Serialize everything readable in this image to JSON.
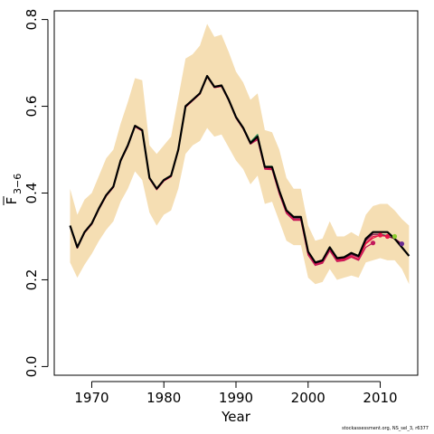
{
  "chart_data": {
    "type": "line",
    "xlabel": "Year",
    "ylabel_main": "F",
    "ylabel_sub": "3−6",
    "xlim": [
      1964.8,
      2015.2
    ],
    "ylim": [
      -0.02,
      0.82
    ],
    "xticks": [
      1970,
      1980,
      1990,
      2000,
      2010
    ],
    "yticks": [
      0.0,
      0.2,
      0.4,
      0.6,
      0.8
    ],
    "ytick_labels": [
      "0.0",
      "0.2",
      "0.4",
      "0.6",
      "0.8"
    ],
    "band_color": "#f5deb3",
    "ci_band": {
      "x": [
        1967,
        1968,
        1969,
        1970,
        1971,
        1972,
        1973,
        1974,
        1975,
        1976,
        1977,
        1978,
        1979,
        1980,
        1981,
        1982,
        1983,
        1984,
        1985,
        1986,
        1987,
        1988,
        1989,
        1990,
        1991,
        1992,
        1993,
        1994,
        1995,
        1996,
        1997,
        1998,
        1999,
        2000,
        2001,
        2002,
        2003,
        2004,
        2005,
        2006,
        2007,
        2008,
        2009,
        2010,
        2011,
        2012,
        2013,
        2014
      ],
      "lower": [
        0.24,
        0.205,
        0.235,
        0.26,
        0.29,
        0.315,
        0.335,
        0.38,
        0.41,
        0.45,
        0.43,
        0.355,
        0.325,
        0.35,
        0.36,
        0.41,
        0.49,
        0.51,
        0.52,
        0.55,
        0.53,
        0.535,
        0.505,
        0.475,
        0.455,
        0.42,
        0.44,
        0.375,
        0.38,
        0.335,
        0.29,
        0.28,
        0.28,
        0.205,
        0.19,
        0.195,
        0.225,
        0.2,
        0.205,
        0.21,
        0.205,
        0.24,
        0.245,
        0.25,
        0.245,
        0.245,
        0.225,
        0.19
      ],
      "upper": [
        0.41,
        0.35,
        0.385,
        0.4,
        0.44,
        0.48,
        0.5,
        0.56,
        0.61,
        0.665,
        0.66,
        0.51,
        0.49,
        0.51,
        0.53,
        0.62,
        0.71,
        0.72,
        0.74,
        0.79,
        0.76,
        0.765,
        0.725,
        0.68,
        0.655,
        0.615,
        0.63,
        0.545,
        0.54,
        0.5,
        0.435,
        0.41,
        0.41,
        0.325,
        0.29,
        0.295,
        0.335,
        0.3,
        0.3,
        0.31,
        0.3,
        0.35,
        0.37,
        0.375,
        0.375,
        0.36,
        0.34,
        0.325
      ]
    },
    "series": [
      {
        "color": "#000000",
        "width": 2.2,
        "x": [
          1967,
          1968,
          1969,
          1970,
          1971,
          1972,
          1973,
          1974,
          1975,
          1976,
          1977,
          1978,
          1979,
          1980,
          1981,
          1982,
          1983,
          1984,
          1985,
          1986,
          1987,
          1988,
          1989,
          1990,
          1991,
          1992,
          1993,
          1994,
          1995,
          1996,
          1997,
          1998,
          1999,
          2000,
          2001,
          2002,
          2003,
          2004,
          2005,
          2006,
          2007,
          2008,
          2009,
          2010,
          2011,
          2012,
          2013,
          2014
        ],
        "values": [
          0.325,
          0.275,
          0.31,
          0.33,
          0.365,
          0.395,
          0.415,
          0.475,
          0.51,
          0.555,
          0.545,
          0.435,
          0.41,
          0.43,
          0.44,
          0.5,
          0.6,
          0.615,
          0.63,
          0.67,
          0.645,
          0.648,
          0.615,
          0.575,
          0.55,
          0.515,
          0.53,
          0.46,
          0.46,
          0.405,
          0.36,
          0.345,
          0.345,
          0.265,
          0.24,
          0.245,
          0.275,
          0.25,
          0.252,
          0.262,
          0.255,
          0.295,
          0.31,
          0.31,
          0.31,
          0.295,
          0.275,
          0.255
        ],
        "end_marker": false
      },
      {
        "color": "#2e8b57",
        "width": 1.2,
        "x": [
          1967,
          1968,
          1969,
          1970,
          1971,
          1972,
          1973,
          1974,
          1975,
          1976,
          1977,
          1978,
          1979,
          1980,
          1981,
          1982,
          1983,
          1984,
          1985,
          1986,
          1987,
          1988,
          1989,
          1990,
          1991,
          1992,
          1993,
          1994,
          1995,
          1996,
          1997,
          1998,
          1999,
          2000,
          2001,
          2002,
          2003,
          2004,
          2005,
          2006,
          2007,
          2008,
          2009,
          2010,
          2011,
          2012
        ],
        "values": [
          0.325,
          0.275,
          0.31,
          0.33,
          0.365,
          0.395,
          0.415,
          0.475,
          0.51,
          0.555,
          0.545,
          0.435,
          0.41,
          0.43,
          0.44,
          0.5,
          0.6,
          0.615,
          0.63,
          0.67,
          0.645,
          0.648,
          0.615,
          0.575,
          0.552,
          0.518,
          0.535,
          0.462,
          0.462,
          0.405,
          0.358,
          0.343,
          0.343,
          0.263,
          0.238,
          0.243,
          0.273,
          0.249,
          0.251,
          0.26,
          0.255,
          0.293,
          0.305,
          0.305,
          0.302,
          0.3
        ],
        "end_marker": true,
        "marker_color": "#8ccc2e"
      },
      {
        "color": "#8b0a50",
        "width": 1.2,
        "x": [
          1967,
          1968,
          1969,
          1970,
          1971,
          1972,
          1973,
          1974,
          1975,
          1976,
          1977,
          1978,
          1979,
          1980,
          1981,
          1982,
          1983,
          1984,
          1985,
          1986,
          1987,
          1988,
          1989,
          1990,
          1991,
          1992,
          1993,
          1994,
          1995,
          1996,
          1997,
          1998,
          1999,
          2000,
          2001,
          2002,
          2003,
          2004,
          2005,
          2006,
          2007,
          2008,
          2009,
          2010,
          2011,
          2012,
          2013
        ],
        "values": [
          0.324,
          0.274,
          0.309,
          0.329,
          0.364,
          0.394,
          0.414,
          0.474,
          0.509,
          0.554,
          0.544,
          0.434,
          0.409,
          0.429,
          0.439,
          0.499,
          0.599,
          0.614,
          0.629,
          0.669,
          0.644,
          0.647,
          0.614,
          0.574,
          0.549,
          0.514,
          0.528,
          0.459,
          0.458,
          0.402,
          0.357,
          0.341,
          0.341,
          0.262,
          0.237,
          0.242,
          0.272,
          0.247,
          0.249,
          0.258,
          0.252,
          0.29,
          0.305,
          0.305,
          0.3,
          0.295,
          0.283
        ],
        "end_marker": true,
        "marker_color": "#6a2c91"
      },
      {
        "color": "#e8174a",
        "width": 1.2,
        "x": [
          1967,
          1968,
          1969,
          1970,
          1971,
          1972,
          1973,
          1974,
          1975,
          1976,
          1977,
          1978,
          1979,
          1980,
          1981,
          1982,
          1983,
          1984,
          1985,
          1986,
          1987,
          1988,
          1989,
          1990,
          1991,
          1992,
          1993,
          1994,
          1995,
          1996,
          1997,
          1998,
          1999,
          2000,
          2001,
          2002,
          2003,
          2004,
          2005,
          2006,
          2007,
          2008,
          2009,
          2010,
          2011
        ],
        "values": [
          0.323,
          0.273,
          0.308,
          0.328,
          0.363,
          0.393,
          0.413,
          0.473,
          0.508,
          0.553,
          0.543,
          0.433,
          0.408,
          0.428,
          0.438,
          0.498,
          0.598,
          0.613,
          0.628,
          0.668,
          0.643,
          0.646,
          0.613,
          0.573,
          0.548,
          0.513,
          0.525,
          0.457,
          0.456,
          0.4,
          0.355,
          0.339,
          0.339,
          0.26,
          0.235,
          0.24,
          0.27,
          0.245,
          0.247,
          0.255,
          0.248,
          0.285,
          0.3,
          0.302,
          0.3
        ],
        "end_marker": true,
        "marker_color": "#e8174a"
      },
      {
        "color": "#e8174a",
        "width": 1.2,
        "x": [
          1967,
          1968,
          1969,
          1970,
          1971,
          1972,
          1973,
          1974,
          1975,
          1976,
          1977,
          1978,
          1979,
          1980,
          1981,
          1982,
          1983,
          1984,
          1985,
          1986,
          1987,
          1988,
          1989,
          1990,
          1991,
          1992,
          1993,
          1994,
          1995,
          1996,
          1997,
          1998,
          1999,
          2000,
          2001,
          2002,
          2003,
          2004,
          2005,
          2006,
          2007,
          2008,
          2009,
          2010
        ],
        "values": [
          0.323,
          0.273,
          0.308,
          0.328,
          0.363,
          0.393,
          0.413,
          0.473,
          0.508,
          0.553,
          0.543,
          0.433,
          0.408,
          0.428,
          0.438,
          0.498,
          0.598,
          0.613,
          0.628,
          0.668,
          0.643,
          0.646,
          0.613,
          0.573,
          0.548,
          0.513,
          0.524,
          0.456,
          0.455,
          0.399,
          0.354,
          0.338,
          0.338,
          0.258,
          0.234,
          0.239,
          0.268,
          0.243,
          0.245,
          0.253,
          0.246,
          0.283,
          0.296,
          0.303
        ],
        "end_marker": true,
        "marker_color": "#e8174a"
      },
      {
        "color": "#c2185b",
        "width": 1.2,
        "x": [
          1967,
          1968,
          1969,
          1970,
          1971,
          1972,
          1973,
          1974,
          1975,
          1976,
          1977,
          1978,
          1979,
          1980,
          1981,
          1982,
          1983,
          1984,
          1985,
          1986,
          1987,
          1988,
          1989,
          1990,
          1991,
          1992,
          1993,
          1994,
          1995,
          1996,
          1997,
          1998,
          1999,
          2000,
          2001,
          2002,
          2003,
          2004,
          2005,
          2006,
          2007,
          2008,
          2009
        ],
        "values": [
          0.323,
          0.273,
          0.308,
          0.328,
          0.363,
          0.393,
          0.413,
          0.473,
          0.508,
          0.553,
          0.543,
          0.433,
          0.408,
          0.428,
          0.438,
          0.498,
          0.598,
          0.613,
          0.628,
          0.668,
          0.643,
          0.646,
          0.613,
          0.573,
          0.548,
          0.513,
          0.523,
          0.455,
          0.454,
          0.398,
          0.353,
          0.337,
          0.337,
          0.257,
          0.233,
          0.238,
          0.267,
          0.242,
          0.244,
          0.252,
          0.245,
          0.275,
          0.285
        ],
        "end_marker": true,
        "marker_color": "#c2185b"
      }
    ]
  },
  "footer_text": "stockassessment.org, NS_sel_3, r6377"
}
